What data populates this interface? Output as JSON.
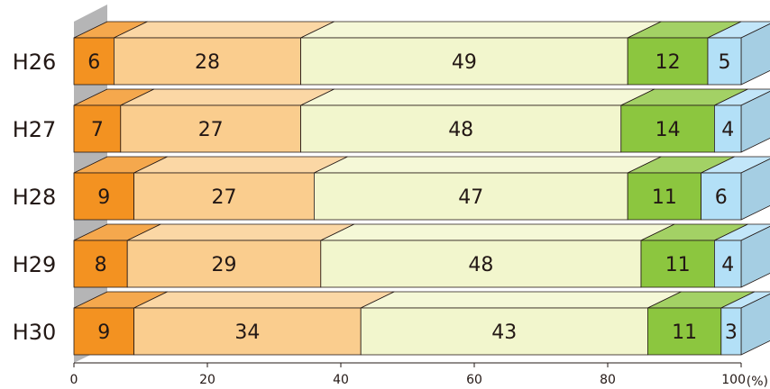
{
  "chart_data": {
    "type": "bar",
    "orientation": "horizontal",
    "stacked": true,
    "percent": true,
    "three_d": true,
    "categories": [
      "H26",
      "H27",
      "H28",
      "H29",
      "H30"
    ],
    "series": [
      {
        "color": "#f39221",
        "values": [
          6,
          7,
          9,
          8,
          9
        ]
      },
      {
        "color": "#facd8e",
        "values": [
          28,
          27,
          27,
          29,
          34
        ]
      },
      {
        "color": "#f2f6cd",
        "values": [
          49,
          48,
          47,
          48,
          43
        ]
      },
      {
        "color": "#8cc63f",
        "values": [
          12,
          14,
          11,
          11,
          11
        ]
      },
      {
        "color": "#b3e0f7",
        "values": [
          5,
          4,
          6,
          4,
          3
        ]
      }
    ],
    "xlim": [
      0,
      100
    ],
    "x_ticks": [
      "0",
      "20",
      "40",
      "60",
      "80",
      "100"
    ],
    "x_unit": "(%)",
    "grid": false,
    "legend": "none"
  }
}
